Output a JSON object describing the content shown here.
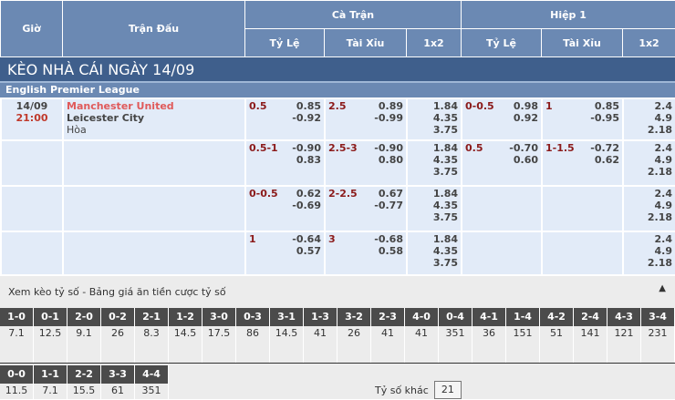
{
  "header": {
    "gio": "Giờ",
    "tran_dau": "Trận Đấu",
    "ca_tran": "Cà Trận",
    "hiep1": "Hiệp 1",
    "ty_le": "Tỷ Lệ",
    "tai_xiu": "Tài Xỉu",
    "x12": "1x2"
  },
  "title": "KÈO NHÀ CÁI NGÀY 14/09",
  "league": "English Premier League",
  "match": {
    "date": "14/09",
    "time": "21:00",
    "home": "Manchester United",
    "away": "Leicester City",
    "draw": "Hòa"
  },
  "rows": [
    {
      "hc": "0.5",
      "hc_o": [
        "0.85",
        "-0.92"
      ],
      "ou": "2.5",
      "ou_o": [
        "0.89",
        "-0.99"
      ],
      "x12": [
        "1.84",
        "4.35",
        "3.75"
      ],
      "h1_hc": "0-0.5",
      "h1_hc_o": [
        "0.98",
        "0.92"
      ],
      "h1_ou": "1",
      "h1_ou_o": [
        "0.85",
        "-0.95"
      ],
      "h1_x12": [
        "2.4",
        "4.9",
        "2.18"
      ]
    },
    {
      "hc": "0.5-1",
      "hc_o": [
        "-0.90",
        "0.83"
      ],
      "ou": "2.5-3",
      "ou_o": [
        "-0.90",
        "0.80"
      ],
      "x12": [
        "1.84",
        "4.35",
        "3.75"
      ],
      "h1_hc": "0.5",
      "h1_hc_o": [
        "-0.70",
        "0.60"
      ],
      "h1_ou": "1-1.5",
      "h1_ou_o": [
        "-0.72",
        "0.62"
      ],
      "h1_x12": [
        "2.4",
        "4.9",
        "2.18"
      ]
    },
    {
      "hc": "0-0.5",
      "hc_o": [
        "0.62",
        "-0.69"
      ],
      "ou": "2-2.5",
      "ou_o": [
        "0.67",
        "-0.77"
      ],
      "x12": [
        "1.84",
        "4.35",
        "3.75"
      ],
      "h1_hc": "",
      "h1_hc_o": [
        "",
        ""
      ],
      "h1_ou": "",
      "h1_ou_o": [
        "",
        ""
      ],
      "h1_x12": [
        "2.4",
        "4.9",
        "2.18"
      ]
    },
    {
      "hc": "1",
      "hc_o": [
        "-0.64",
        "0.57"
      ],
      "ou": "3",
      "ou_o": [
        "-0.68",
        "0.58"
      ],
      "x12": [
        "1.84",
        "4.35",
        "3.75"
      ],
      "h1_hc": "",
      "h1_hc_o": [
        "",
        ""
      ],
      "h1_ou": "",
      "h1_ou_o": [
        "",
        ""
      ],
      "h1_x12": [
        "2.4",
        "4.9",
        "2.18"
      ]
    }
  ],
  "scores": {
    "title": "Xem kèo tỷ số - Bảng giá ăn tiền cược tỷ số",
    "toggle_icon": "triangle-up",
    "row1": [
      [
        "1-0",
        "7.1"
      ],
      [
        "0-1",
        "12.5"
      ],
      [
        "2-0",
        "9.1"
      ],
      [
        "0-2",
        "26"
      ],
      [
        "2-1",
        "8.3"
      ],
      [
        "1-2",
        "14.5"
      ],
      [
        "3-0",
        "17.5"
      ],
      [
        "0-3",
        "86"
      ],
      [
        "3-1",
        "14.5"
      ],
      [
        "1-3",
        "41"
      ],
      [
        "3-2",
        "26"
      ],
      [
        "2-3",
        "41"
      ],
      [
        "4-0",
        "41"
      ],
      [
        "0-4",
        "351"
      ],
      [
        "4-1",
        "36"
      ],
      [
        "1-4",
        "151"
      ],
      [
        "4-2",
        "51"
      ],
      [
        "2-4",
        "141"
      ],
      [
        "4-3",
        "121"
      ],
      [
        "3-4",
        "231"
      ]
    ],
    "row2": [
      [
        "0-0",
        "11.5"
      ],
      [
        "1-1",
        "7.1"
      ],
      [
        "2-2",
        "15.5"
      ],
      [
        "3-3",
        "61"
      ],
      [
        "4-4",
        "351"
      ]
    ],
    "other_label": "Tỷ số khác",
    "other_value": "21"
  }
}
